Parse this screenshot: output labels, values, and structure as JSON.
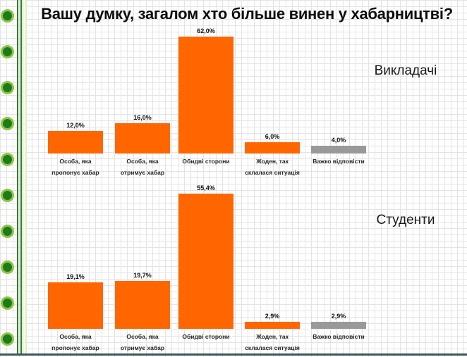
{
  "title": "Вашу думку, загалом хто більше винен у хабарництві?",
  "chart_data": [
    {
      "type": "bar",
      "group_label": "Викладачі",
      "categories": [
        "Особа, яка пропонує хабар",
        "Особа, яка отримує хабар",
        "Обидві сторони",
        "Жоден, так склалася ситуація",
        "Важко відповісти"
      ],
      "categories_wrapped": [
        [
          "Особа, яка",
          "пропонує хабар"
        ],
        [
          "Особа, яка",
          "отримує хабар"
        ],
        [
          "Обидві сторони"
        ],
        [
          "Жоден, так",
          "склалася ситуація"
        ],
        [
          "Важко відповісти"
        ]
      ],
      "values": [
        12.0,
        16.0,
        62.0,
        6.0,
        4.0
      ],
      "value_labels": [
        "12,0%",
        "16,0%",
        "62,0%",
        "6,0%",
        "4,0%"
      ],
      "bar_colors": [
        "#ff6600",
        "#ff6600",
        "#ff6600",
        "#ff6600",
        "#999999"
      ],
      "xlabel": "",
      "ylabel": "",
      "ylim": [
        0,
        70
      ],
      "legend": "none",
      "grid": "graph-paper background, no axis lines"
    },
    {
      "type": "bar",
      "group_label": "Студенти",
      "categories": [
        "Особа, яка пропонує хабар",
        "Особа, яка отримує хабар",
        "Обидві сторони",
        "Жоден, так склалася ситуація",
        "Важко відповісти"
      ],
      "categories_wrapped": [
        [
          "Особа, яка",
          "пропонує хабар"
        ],
        [
          "Особа, яка",
          "отримує хабар"
        ],
        [
          "Обидві сторони"
        ],
        [
          "Жоден, так",
          "склалася ситуація"
        ],
        [
          "Важко відповісти"
        ]
      ],
      "values": [
        19.1,
        19.7,
        55.4,
        2.9,
        2.9
      ],
      "value_labels": [
        "19,1%",
        "19,7%",
        "55,4%",
        "2,9%",
        "2,9%"
      ],
      "bar_colors": [
        "#ff6600",
        "#ff6600",
        "#ff6600",
        "#ff6600",
        "#999999"
      ],
      "xlabel": "",
      "ylabel": "",
      "ylim": [
        0,
        60
      ],
      "legend": "none",
      "grid": "graph-paper background, no axis lines"
    }
  ],
  "decor": {
    "dot_color": "#1d7a1d",
    "dot_ring_color": "#8dc63f",
    "divider_color": "#2e7d2e",
    "strip_color": "#e9f2d6",
    "bottom_rule_color": "#3e5560",
    "grid_line_color": "#e4e4e4",
    "bar_orange": "#ff6600",
    "bar_gray": "#999999"
  }
}
